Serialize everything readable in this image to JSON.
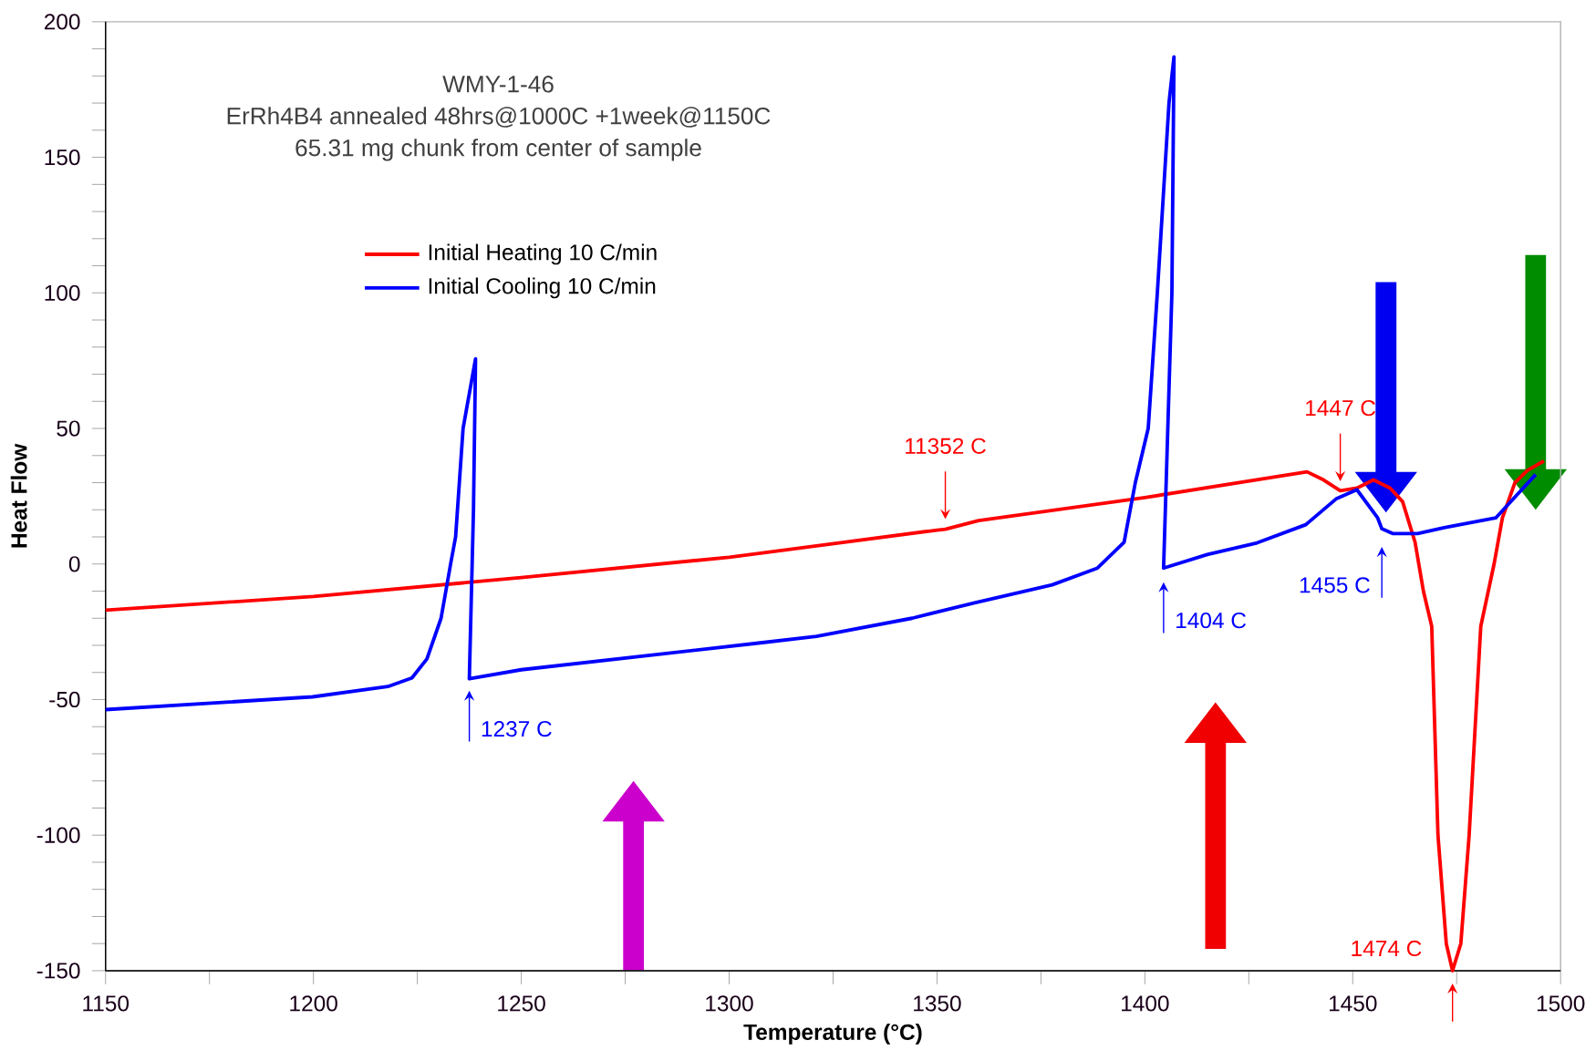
{
  "chart_data": {
    "type": "line",
    "title": "WMY-1-46",
    "subtitle": "ErRh4B4 annealed 48hrs@1000C +1week@1150C",
    "xlabel": "Temperature (°C)",
    "ylabel": "Heat Flow",
    "xlim": [
      1150,
      1500
    ],
    "ylim": [
      -150,
      200
    ],
    "xticks": [
      1150,
      {
        "value": 1175,
        "label": null
      },
      1200,
      {
        "value": 1225,
        "label": null
      },
      1250,
      {
        "value": 1275,
        "label": null
      },
      1300,
      {
        "value": 1325,
        "label": null
      },
      1350,
      {
        "value": 1375,
        "label": null
      },
      1400,
      {
        "value": 1425,
        "label": null
      },
      1450,
      {
        "value": 1475,
        "label": null
      },
      1500
    ],
    "yticks": [
      -150,
      {
        "value": -140,
        "label": null
      },
      {
        "value": -130,
        "label": null
      },
      {
        "value": -120,
        "label": null
      },
      {
        "value": -110,
        "label": null
      },
      -100,
      {
        "value": -90,
        "label": null
      },
      {
        "value": -80,
        "label": null
      },
      {
        "value": -70,
        "label": null
      },
      {
        "value": -60,
        "label": null
      },
      -50,
      {
        "value": -40,
        "label": null
      },
      {
        "value": -30,
        "label": null
      },
      {
        "value": -20,
        "label": null
      },
      {
        "value": -10,
        "label": null
      },
      0,
      {
        "value": 10,
        "label": null
      },
      {
        "value": 20,
        "label": null
      },
      {
        "value": 30,
        "label": null
      },
      {
        "value": 40,
        "label": null
      },
      50,
      {
        "value": 60,
        "label": null
      },
      {
        "value": 70,
        "label": null
      },
      {
        "value": 80,
        "label": null
      },
      {
        "value": 90,
        "label": null
      },
      100,
      {
        "value": 110,
        "label": null
      },
      {
        "value": 120,
        "label": null
      },
      {
        "value": 130,
        "label": null
      },
      {
        "value": 140,
        "label": null
      },
      150,
      {
        "value": 160,
        "label": null
      },
      {
        "value": 170,
        "label": null
      },
      {
        "value": 180,
        "label": null
      },
      {
        "value": 190,
        "label": null
      },
      200
    ],
    "grid": false,
    "legend": "top left",
    "marker": "none",
    "line_style": "solid",
    "series": [
      {
        "name": "Initial Heating 10 C/min",
        "color": "#ff0000",
        "x": [
          1150,
          1200,
          1250,
          1300,
          1321,
          1350,
          1352,
          1360,
          1400,
          1439,
          1443,
          1447,
          1451,
          1455,
          1459,
          1462,
          1465,
          1467,
          1469,
          1470.5,
          1472.5,
          1474,
          1476,
          1478,
          1480.8,
          1484,
          1486,
          1489,
          1492,
          1496
        ],
        "values": [
          -17,
          -12,
          -5,
          2.5,
          6.7,
          12.5,
          12.8,
          16,
          24.5,
          34,
          31,
          27,
          28,
          31,
          28,
          23,
          8,
          -10,
          -23,
          -100,
          -140,
          -150,
          -140,
          -100,
          -23,
          0,
          17,
          30,
          34.5,
          38
        ]
      },
      {
        "name": "Initial Cooling 10 C/min",
        "color": "#0000ff",
        "x": [
          1494,
          1491,
          1484.4,
          1472,
          1465.6,
          1459.7,
          1457,
          1456,
          1451,
          1446,
          1438.7,
          1427,
          1415,
          1404.5,
          1406.5,
          1407,
          1405.8,
          1403,
          1400.8,
          1397.7,
          1395,
          1388.6,
          1377.7,
          1358.8,
          1344,
          1321,
          1308,
          1250,
          1237.5,
          1238.5,
          1239,
          1236,
          1234.2,
          1233,
          1230.7,
          1227.3,
          1223.7,
          1217.9,
          1199.8,
          1150
        ],
        "values": [
          33,
          28,
          17,
          13.4,
          11.2,
          11.2,
          13,
          17,
          27.4,
          24,
          14.5,
          7.8,
          3.5,
          -1.5,
          100,
          187,
          170,
          100,
          50,
          30,
          8,
          -1.5,
          -7.7,
          -14.4,
          -20,
          -26.7,
          -29,
          -39,
          -42.3,
          20,
          75.7,
          50,
          10,
          0,
          -20,
          -35,
          -42,
          -45.2,
          -49,
          -53.7
        ]
      }
    ],
    "annotations": [
      "65.31 mg chunk from center of sample",
      {
        "text": "1237 C",
        "x": 1237.5,
        "y": -42
      },
      {
        "text": "11352 C",
        "x": 1352,
        "y": 13
      },
      {
        "text": "1404 C",
        "x": 1404.5,
        "y": -2
      },
      {
        "text": "1447 C",
        "x": 1447,
        "y": 27
      },
      {
        "text": "1455 C",
        "x": 1457,
        "y": 11
      },
      {
        "text": "1474 C",
        "x": 1474,
        "y": -150
      }
    ]
  }
}
